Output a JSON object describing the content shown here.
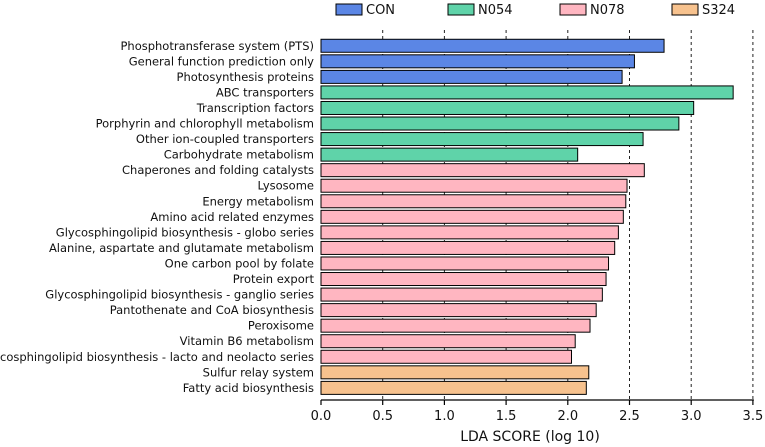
{
  "chart_data": {
    "type": "bar",
    "orientation": "horizontal",
    "title": "",
    "xlabel": "LDA SCORE (log 10)",
    "ylabel": "",
    "xlim": [
      0,
      3.5
    ],
    "xticks": [
      "0.0",
      "0.5",
      "1.0",
      "1.5",
      "2.0",
      "2.5",
      "3.0",
      "3.5"
    ],
    "grid": "vertical dashed at 0.5 intervals",
    "legend_position": "top",
    "groups": [
      {
        "name": "CON",
        "color": "#5b86e5"
      },
      {
        "name": "N054",
        "color": "#5fd3a9"
      },
      {
        "name": "N078",
        "color": "#ffb6c1"
      },
      {
        "name": "S324",
        "color": "#f7c28e"
      }
    ],
    "bars": [
      {
        "label": "Phosphotransferase system (PTS)",
        "value": 2.78,
        "group": "CON"
      },
      {
        "label": "General function prediction only",
        "value": 2.54,
        "group": "CON"
      },
      {
        "label": "Photosynthesis proteins",
        "value": 2.44,
        "group": "CON"
      },
      {
        "label": "ABC transporters",
        "value": 3.34,
        "group": "N054"
      },
      {
        "label": "Transcription factors",
        "value": 3.02,
        "group": "N054"
      },
      {
        "label": "Porphyrin and chlorophyll metabolism",
        "value": 2.9,
        "group": "N054"
      },
      {
        "label": "Other ion-coupled transporters",
        "value": 2.61,
        "group": "N054"
      },
      {
        "label": "Carbohydrate metabolism",
        "value": 2.08,
        "group": "N054"
      },
      {
        "label": "Chaperones and folding catalysts",
        "value": 2.62,
        "group": "N078"
      },
      {
        "label": "Lysosome",
        "value": 2.48,
        "group": "N078"
      },
      {
        "label": "Energy metabolism",
        "value": 2.47,
        "group": "N078"
      },
      {
        "label": "Amino acid related enzymes",
        "value": 2.45,
        "group": "N078"
      },
      {
        "label": "Glycosphingolipid biosynthesis - globo series",
        "value": 2.41,
        "group": "N078"
      },
      {
        "label": "Alanine, aspartate and glutamate metabolism",
        "value": 2.38,
        "group": "N078"
      },
      {
        "label": "One carbon pool by folate",
        "value": 2.33,
        "group": "N078"
      },
      {
        "label": "Protein export",
        "value": 2.31,
        "group": "N078"
      },
      {
        "label": "Glycosphingolipid biosynthesis - ganglio series",
        "value": 2.28,
        "group": "N078"
      },
      {
        "label": "Pantothenate and CoA biosynthesis",
        "value": 2.23,
        "group": "N078"
      },
      {
        "label": "Peroxisome",
        "value": 2.18,
        "group": "N078"
      },
      {
        "label": "Vitamin B6 metabolism",
        "value": 2.06,
        "group": "N078"
      },
      {
        "label": "Glycosphingolipid biosynthesis - lacto and neolacto series",
        "value": 2.03,
        "group": "N078"
      },
      {
        "label": "Sulfur relay system",
        "value": 2.17,
        "group": "S324"
      },
      {
        "label": "Fatty acid biosynthesis",
        "value": 2.15,
        "group": "S324"
      }
    ]
  }
}
